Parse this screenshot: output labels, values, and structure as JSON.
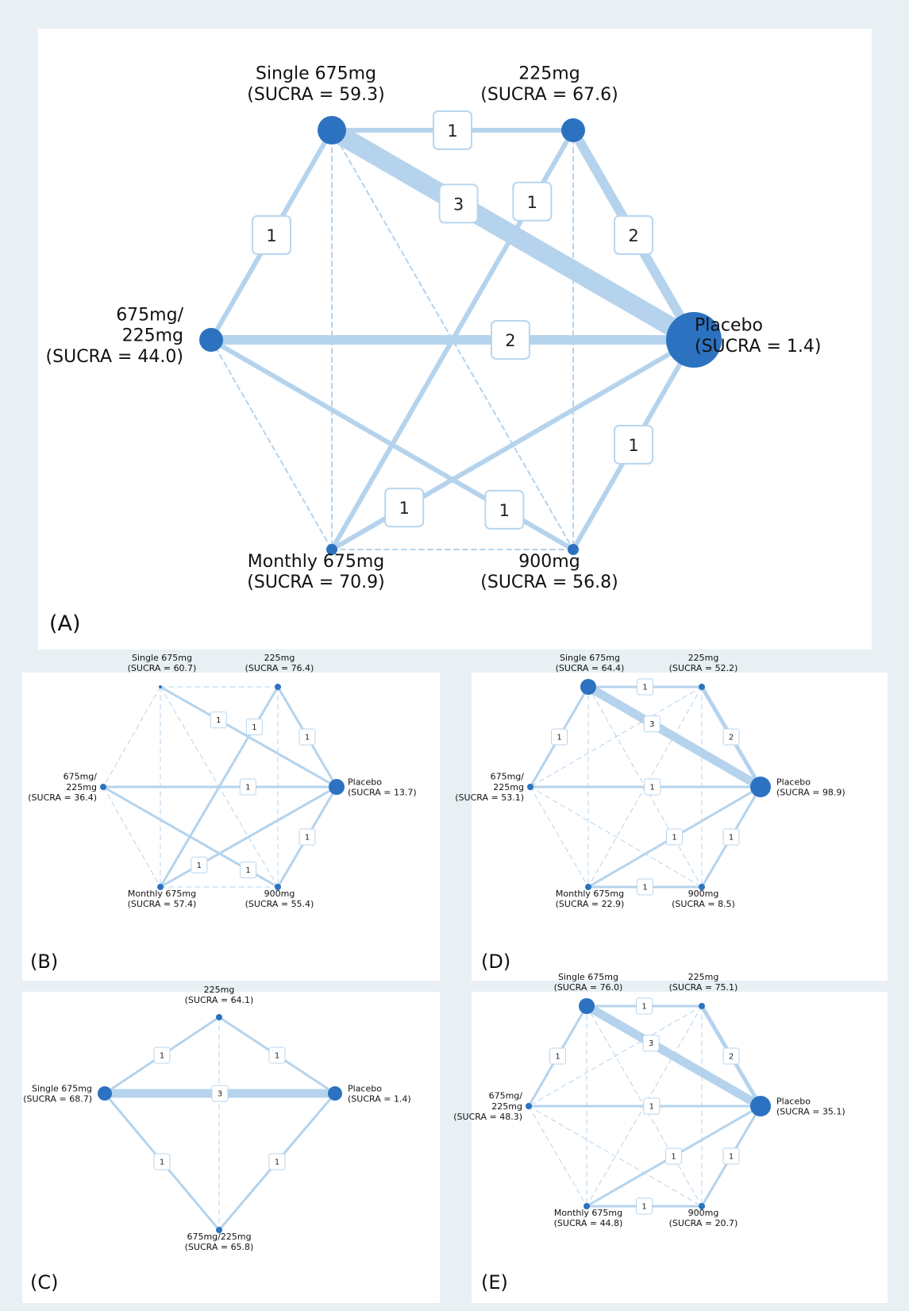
{
  "panels": [
    {
      "id": "A",
      "label": "(A)",
      "nodes": [
        {
          "id": "single",
          "name": "Single 675mg",
          "sucra": "(SUCRA = 59.3)"
        },
        {
          "id": "m225",
          "name": "225mg",
          "sucra": "(SUCRA = 67.6)"
        },
        {
          "id": "placebo",
          "name": "Placebo",
          "sucra": "(SUCRA = 1.4)"
        },
        {
          "id": "m900",
          "name": "900mg",
          "sucra": "(SUCRA = 56.8)"
        },
        {
          "id": "monthly",
          "name": "Monthly 675mg",
          "sucra": "(SUCRA = 70.9)"
        },
        {
          "id": "combo",
          "name": "675mg/\n225mg",
          "sucra": "(SUCRA = 44.0)"
        }
      ],
      "edges": [
        {
          "from": "single",
          "to": "m225",
          "studies": "1"
        },
        {
          "from": "single",
          "to": "placebo",
          "studies": "3"
        },
        {
          "from": "single",
          "to": "combo",
          "studies": "1"
        },
        {
          "from": "m225",
          "to": "placebo",
          "studies": "2"
        },
        {
          "from": "m225",
          "to": "monthly",
          "studies": "1"
        },
        {
          "from": "combo",
          "to": "placebo",
          "studies": "2"
        },
        {
          "from": "combo",
          "to": "m900",
          "studies": "1"
        },
        {
          "from": "placebo",
          "to": "m900",
          "studies": "1"
        },
        {
          "from": "placebo",
          "to": "monthly",
          "studies": "1"
        },
        {
          "from": "single",
          "to": "monthly",
          "indirect": true
        },
        {
          "from": "single",
          "to": "m900",
          "indirect": true
        },
        {
          "from": "m225",
          "to": "m900",
          "indirect": true
        },
        {
          "from": "combo",
          "to": "monthly",
          "indirect": true
        },
        {
          "from": "monthly",
          "to": "m900",
          "indirect": true
        }
      ]
    },
    {
      "id": "B",
      "label": "(B)",
      "nodes": [
        {
          "id": "single",
          "name": "Single 675mg",
          "sucra": "(SUCRA = 60.7)"
        },
        {
          "id": "m225",
          "name": "225mg",
          "sucra": "(SUCRA = 76.4)"
        },
        {
          "id": "placebo",
          "name": "Placebo",
          "sucra": "(SUCRA = 13.7)"
        },
        {
          "id": "m900",
          "name": "900mg",
          "sucra": "(SUCRA = 55.4)"
        },
        {
          "id": "monthly",
          "name": "Monthly 675mg",
          "sucra": "(SUCRA = 57.4)"
        },
        {
          "id": "combo",
          "name": "675mg/\n225mg",
          "sucra": "(SUCRA = 36.4)"
        }
      ],
      "edges": [
        {
          "from": "single",
          "to": "placebo",
          "studies": "1"
        },
        {
          "from": "m225",
          "to": "placebo",
          "studies": "1"
        },
        {
          "from": "m225",
          "to": "monthly",
          "studies": "1"
        },
        {
          "from": "combo",
          "to": "placebo",
          "studies": "1"
        },
        {
          "from": "combo",
          "to": "m900",
          "studies": "1"
        },
        {
          "from": "placebo",
          "to": "m900",
          "studies": "1"
        },
        {
          "from": "placebo",
          "to": "monthly",
          "studies": "1"
        },
        {
          "from": "single",
          "to": "m225",
          "indirect": true
        },
        {
          "from": "single",
          "to": "combo",
          "indirect": true
        },
        {
          "from": "single",
          "to": "monthly",
          "indirect": true
        },
        {
          "from": "single",
          "to": "m900",
          "indirect": true
        },
        {
          "from": "m225",
          "to": "m900",
          "indirect": true
        },
        {
          "from": "combo",
          "to": "monthly",
          "indirect": true
        },
        {
          "from": "monthly",
          "to": "m900",
          "indirect": true
        }
      ]
    },
    {
      "id": "C",
      "label": "(C)",
      "nodes": [
        {
          "id": "m225",
          "name": "225mg",
          "sucra": "(SUCRA = 64.1)"
        },
        {
          "id": "single",
          "name": "Single 675mg",
          "sucra": "(SUCRA = 68.7)"
        },
        {
          "id": "placebo",
          "name": "Placebo",
          "sucra": "(SUCRA = 1.4)"
        },
        {
          "id": "combo",
          "name": "675mg/225mg",
          "sucra": "(SUCRA = 65.8)"
        }
      ],
      "edges": [
        {
          "from": "m225",
          "to": "single",
          "studies": "1"
        },
        {
          "from": "m225",
          "to": "placebo",
          "studies": "1"
        },
        {
          "from": "single",
          "to": "placebo",
          "studies": "3"
        },
        {
          "from": "single",
          "to": "combo",
          "studies": "1"
        },
        {
          "from": "placebo",
          "to": "combo",
          "studies": "1"
        },
        {
          "from": "m225",
          "to": "combo",
          "indirect": true
        }
      ]
    },
    {
      "id": "D",
      "label": "(D)",
      "nodes": [
        {
          "id": "single",
          "name": "Single 675mg",
          "sucra": "(SUCRA = 64.4)"
        },
        {
          "id": "m225",
          "name": "225mg",
          "sucra": "(SUCRA = 52.2)"
        },
        {
          "id": "placebo",
          "name": "Placebo",
          "sucra": "(SUCRA = 98.9)"
        },
        {
          "id": "m900",
          "name": "900mg",
          "sucra": "(SUCRA = 8.5)"
        },
        {
          "id": "monthly",
          "name": "Monthly 675mg",
          "sucra": "(SUCRA = 22.9)"
        },
        {
          "id": "combo",
          "name": "675mg/\n225mg",
          "sucra": "(SUCRA = 53.1)"
        }
      ],
      "edges": [
        {
          "from": "single",
          "to": "m225",
          "studies": "1"
        },
        {
          "from": "single",
          "to": "placebo",
          "studies": "3"
        },
        {
          "from": "single",
          "to": "combo",
          "studies": "1"
        },
        {
          "from": "m225",
          "to": "placebo",
          "studies": "2"
        },
        {
          "from": "combo",
          "to": "placebo",
          "studies": "1"
        },
        {
          "from": "placebo",
          "to": "m900",
          "studies": "1"
        },
        {
          "from": "placebo",
          "to": "monthly",
          "studies": "1"
        },
        {
          "from": "monthly",
          "to": "m900",
          "studies": "1"
        },
        {
          "from": "single",
          "to": "monthly",
          "indirect": true
        },
        {
          "from": "single",
          "to": "m900",
          "indirect": true
        },
        {
          "from": "m225",
          "to": "combo",
          "indirect": true
        },
        {
          "from": "m225",
          "to": "monthly",
          "indirect": true
        },
        {
          "from": "m225",
          "to": "m900",
          "indirect": true
        },
        {
          "from": "combo",
          "to": "monthly",
          "indirect": true
        },
        {
          "from": "combo",
          "to": "m900",
          "indirect": true
        }
      ]
    },
    {
      "id": "E",
      "label": "(E)",
      "nodes": [
        {
          "id": "single",
          "name": "Single 675mg",
          "sucra": "(SUCRA = 76.0)"
        },
        {
          "id": "m225",
          "name": "225mg",
          "sucra": "(SUCRA = 75.1)"
        },
        {
          "id": "placebo",
          "name": "Placebo",
          "sucra": "(SUCRA = 35.1)"
        },
        {
          "id": "m900",
          "name": "900mg",
          "sucra": "(SUCRA = 20.7)"
        },
        {
          "id": "monthly",
          "name": "Monthly 675mg",
          "sucra": "(SUCRA = 44.8)"
        },
        {
          "id": "combo",
          "name": "675mg/\n225mg",
          "sucra": "(SUCRA = 48.3)"
        }
      ],
      "edges": [
        {
          "from": "single",
          "to": "m225",
          "studies": "1"
        },
        {
          "from": "single",
          "to": "placebo",
          "studies": "3"
        },
        {
          "from": "single",
          "to": "combo",
          "studies": "1"
        },
        {
          "from": "m225",
          "to": "placebo",
          "studies": "2"
        },
        {
          "from": "combo",
          "to": "placebo",
          "studies": "1"
        },
        {
          "from": "placebo",
          "to": "m900",
          "studies": "1"
        },
        {
          "from": "placebo",
          "to": "monthly",
          "studies": "1"
        },
        {
          "from": "monthly",
          "to": "m900",
          "studies": "1"
        },
        {
          "from": "single",
          "to": "monthly",
          "indirect": true
        },
        {
          "from": "single",
          "to": "m900",
          "indirect": true
        },
        {
          "from": "m225",
          "to": "combo",
          "indirect": true
        },
        {
          "from": "m225",
          "to": "monthly",
          "indirect": true
        },
        {
          "from": "m225",
          "to": "m900",
          "indirect": true
        },
        {
          "from": "combo",
          "to": "monthly",
          "indirect": true
        },
        {
          "from": "combo",
          "to": "m900",
          "indirect": true
        }
      ]
    }
  ]
}
